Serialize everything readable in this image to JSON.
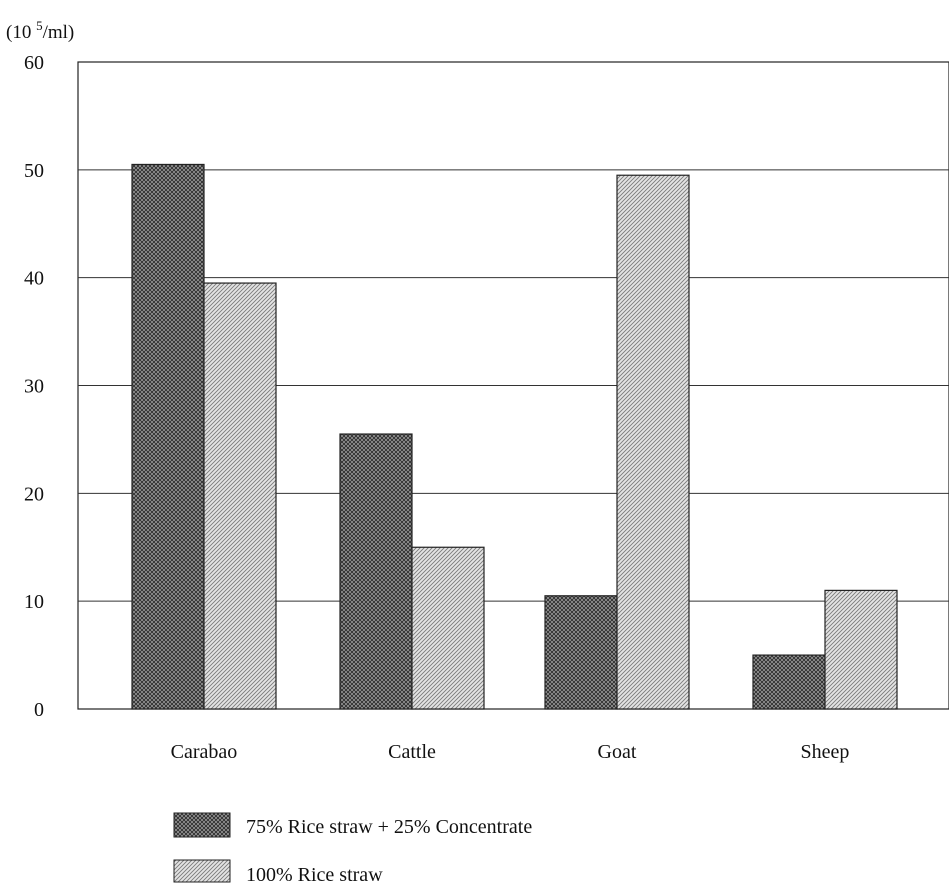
{
  "chart_data": {
    "type": "bar",
    "ylabel": "(10 5/ml)",
    "ylabel_base": "(10 ",
    "ylabel_exp": "5",
    "ylabel_tail": "/ml)",
    "ylim": [
      0,
      60
    ],
    "yticks": [
      "0",
      "10",
      "20",
      "30",
      "40",
      "50",
      "60"
    ],
    "categories": [
      "Carabao",
      "Cattle",
      "Goat",
      "Sheep"
    ],
    "series": [
      {
        "name": "75% Rice straw + 25% Concentrate",
        "values": [
          50.5,
          25.5,
          10.5,
          5
        ],
        "pattern": "crosshatch"
      },
      {
        "name": "100% Rice straw",
        "values": [
          39.5,
          15,
          49.5,
          11
        ],
        "pattern": "diagonal"
      }
    ],
    "grid": true,
    "legend": "bottom-left"
  }
}
